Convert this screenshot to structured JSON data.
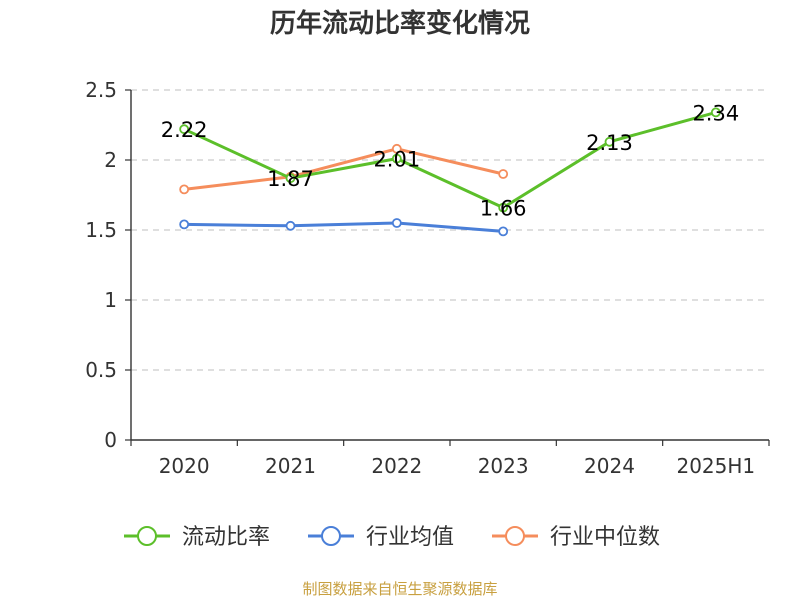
{
  "chart_data": {
    "type": "line",
    "title": "历年流动比率变化情况",
    "categories": [
      "2020",
      "2021",
      "2022",
      "2023",
      "2024",
      "2025H1"
    ],
    "ylim": [
      0,
      2.5
    ],
    "yticks": [
      "0",
      "0.5",
      "1",
      "1.5",
      "2",
      "2.5"
    ],
    "grid": "horizontal-dashed",
    "legend_position": "bottom",
    "series": [
      {
        "name": "流动比率",
        "color": "#5cbf2a",
        "values": [
          2.22,
          1.87,
          2.01,
          1.66,
          2.13,
          2.34
        ],
        "labels": [
          "2.22",
          "1.87",
          "2.01",
          "1.66",
          "2.13",
          "2.34"
        ]
      },
      {
        "name": "行业均值",
        "color": "#4a7fd8",
        "values": [
          1.54,
          1.53,
          1.55,
          1.49,
          null,
          null
        ]
      },
      {
        "name": "行业中位数",
        "color": "#f58d5c",
        "values": [
          1.79,
          1.88,
          2.08,
          1.9,
          null,
          null
        ]
      }
    ],
    "source": "制图数据来自恒生聚源数据库"
  }
}
